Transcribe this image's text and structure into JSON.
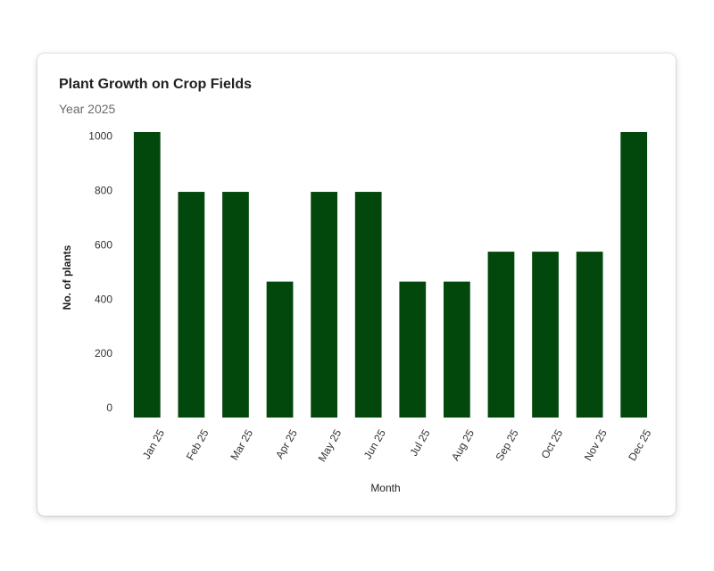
{
  "chart_data": {
    "type": "bar",
    "title": "Plant Growth on Crop Fields",
    "subtitle": "Year 2025",
    "xlabel": "Month",
    "ylabel": "No. of plants",
    "categories": [
      "Jan 25",
      "Feb 25",
      "Mar 25",
      "Apr 25",
      "May 25",
      "Jun 25",
      "Jul 25",
      "Aug 25",
      "Sep 25",
      "Oct 25",
      "Nov 25",
      "Dec 25"
    ],
    "values": [
      1050,
      830,
      830,
      500,
      830,
      830,
      500,
      500,
      610,
      610,
      610,
      1050
    ],
    "yticks": [
      0,
      200,
      400,
      600,
      800,
      1000
    ],
    "ylim": [
      0,
      1050
    ],
    "grid": false,
    "legend": "none",
    "bar_color": "#02480d"
  }
}
